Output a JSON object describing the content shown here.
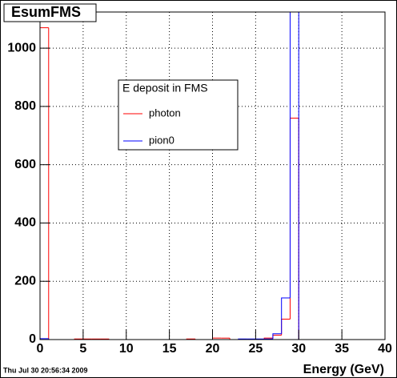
{
  "chart_data": {
    "type": "histogram",
    "title": "EsumFMS",
    "legend_title": "E deposit in FMS",
    "x_label": "Energy (GeV)",
    "timestamp": "Thu Jul 30 20:56:34 2009",
    "bins": [
      0,
      1,
      2,
      3,
      4,
      5,
      6,
      7,
      8,
      9,
      10,
      11,
      12,
      13,
      14,
      15,
      16,
      17,
      18,
      19,
      20,
      21,
      22,
      23,
      24,
      25,
      26,
      27,
      28,
      29,
      30,
      31,
      32,
      33,
      34,
      35,
      36,
      37,
      38,
      39,
      40
    ],
    "series": [
      {
        "name": "photon",
        "color": "#ff0000",
        "values": [
          1070,
          0,
          0,
          0,
          2,
          2,
          2,
          2,
          0,
          0,
          0,
          0,
          0,
          0,
          0,
          0,
          0,
          2,
          0,
          0,
          5,
          5,
          0,
          0,
          0,
          0,
          5,
          15,
          70,
          760,
          0,
          0,
          0,
          0,
          0,
          0,
          0,
          0,
          0,
          0
        ]
      },
      {
        "name": "pion0",
        "color": "#0000ff",
        "values": [
          3,
          0,
          0,
          0,
          0,
          0,
          0,
          0,
          0,
          0,
          0,
          0,
          0,
          0,
          0,
          0,
          0,
          0,
          0,
          0,
          0,
          0,
          0,
          2,
          2,
          2,
          2,
          20,
          143,
          1200,
          0,
          0,
          0,
          0,
          0,
          0,
          0,
          0,
          0,
          0
        ]
      }
    ],
    "xlim": [
      0,
      40
    ],
    "ylim": [
      0,
      1124
    ],
    "xticks": [
      0,
      5,
      10,
      15,
      20,
      25,
      30,
      35,
      40
    ],
    "yticks": [
      0,
      200,
      400,
      600,
      800,
      1000
    ],
    "grid": true
  }
}
